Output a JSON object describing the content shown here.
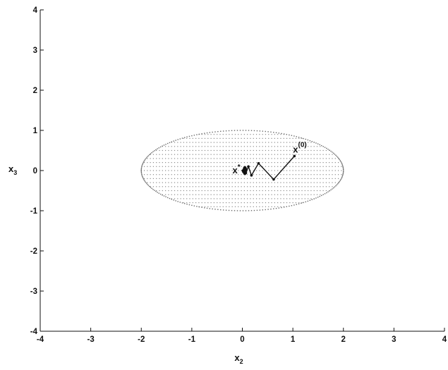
{
  "chart_data": {
    "type": "line",
    "title": "",
    "xlabel": {
      "base": "x",
      "sub": "2"
    },
    "ylabel": {
      "base": "x",
      "sub": "3"
    },
    "xlim": [
      -4,
      4
    ],
    "ylim": [
      -4,
      4
    ],
    "xticks": [
      "-4",
      "-3",
      "-2",
      "-1",
      "0",
      "1",
      "2",
      "3",
      "4"
    ],
    "yticks": [
      "-4",
      "-3",
      "-2",
      "-1",
      "0",
      "1",
      "2",
      "3",
      "4"
    ],
    "grid": false,
    "legend": "none",
    "feasible_region": {
      "shape": "ellipse",
      "center": [
        0,
        0
      ],
      "rx": 2,
      "ry": 1
    },
    "trajectory": {
      "x": [
        1.03,
        0.62,
        0.32,
        0.18,
        0.12,
        0.07,
        0.04,
        0.02,
        0.01
      ],
      "y": [
        0.36,
        -0.22,
        0.18,
        -0.12,
        0.1,
        -0.06,
        0.05,
        -0.03,
        0.0
      ]
    },
    "annotations": [
      {
        "base": "x",
        "sup": "(0)",
        "x": 1.03,
        "y": 0.36
      },
      {
        "base": "x",
        "sup": "*",
        "x": 0.0,
        "y": 0.0
      }
    ],
    "line_color": "#111111",
    "dot_color": "#8a8a8a"
  }
}
